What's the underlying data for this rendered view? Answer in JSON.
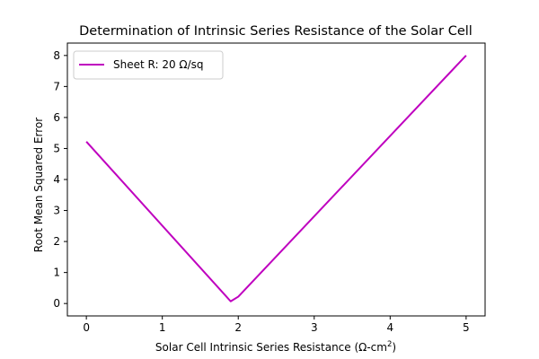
{
  "chart_data": {
    "type": "line",
    "title": "Determination of Intrinsic Series Resistance of the Solar Cell",
    "xlabel": "Solar Cell Intrinsic Series Resistance (Ω-cm",
    "xlabel_sup": "2",
    "xlabel_end": ")",
    "ylabel": "Root Mean Squared Error",
    "xlim": [
      -0.25,
      5.25
    ],
    "ylim": [
      -0.4,
      8.4
    ],
    "xticks": [
      0,
      1,
      2,
      3,
      4,
      5
    ],
    "yticks": [
      0,
      1,
      2,
      3,
      4,
      5,
      6,
      7,
      8
    ],
    "grid": false,
    "legend_position": "top-left",
    "series": [
      {
        "name": "Sheet R: 20 Ω/sq",
        "color": "#bf00bf",
        "x": [
          0,
          1.9,
          2.0,
          5.0
        ],
        "y": [
          5.22,
          0.07,
          0.22,
          8.0
        ]
      }
    ]
  }
}
